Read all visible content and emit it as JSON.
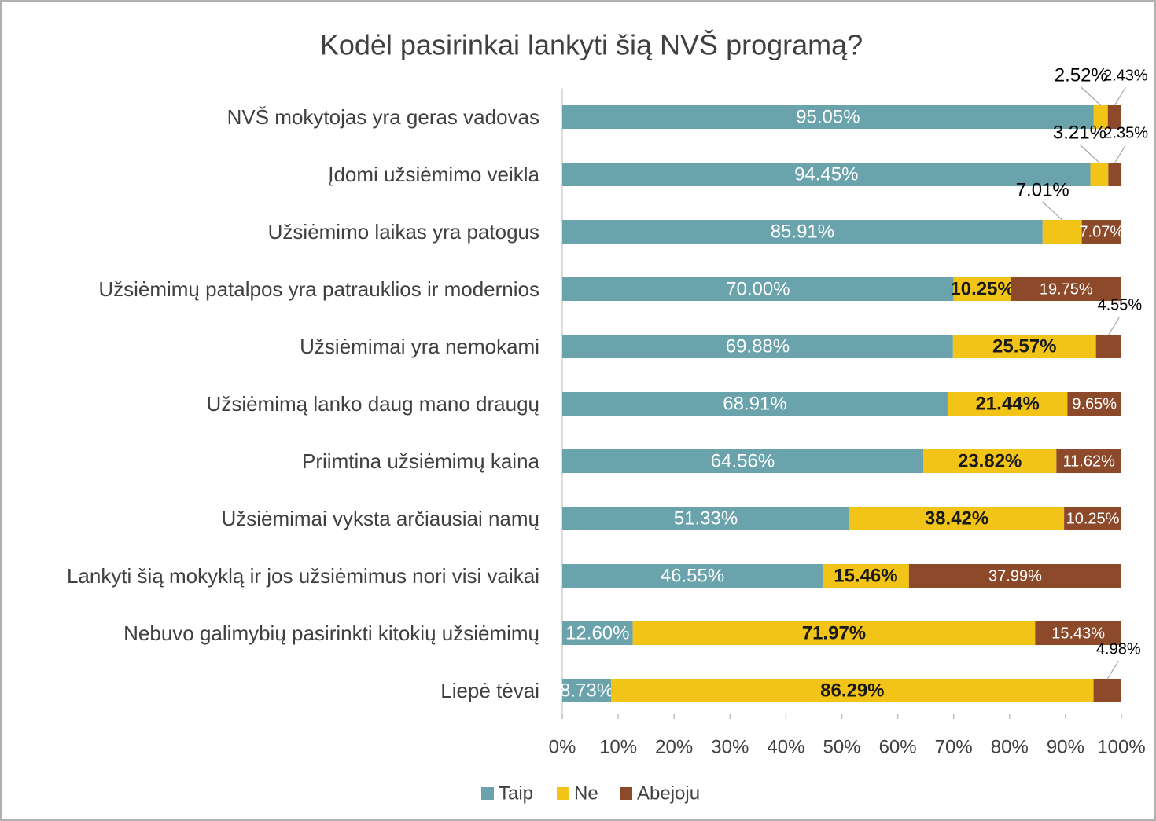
{
  "chart_data": {
    "type": "stacked_barh",
    "title": "Kodėl pasirinkai lankyti šią NVŠ programą?",
    "categories": [
      "NVŠ mokytojas yra geras vadovas",
      "Įdomi užsiėmimo veikla",
      "Užsiėmimo laikas yra patogus",
      "Užsiėmimų patalpos yra patrauklios ir modernios",
      "Užsiėmimai yra nemokami",
      "Užsiėmimą lanko daug mano draugų",
      "Priimtina užsiėmimų kaina",
      "Užsiėmimai vyksta arčiausiai namų",
      "Lankyti šią  mokyklą ir jos užsiėmimus nori visi vaikai",
      "Nebuvo galimybių pasirinkti kitokių užsiėmimų",
      "Liepė tėvai"
    ],
    "series": [
      {
        "name": "Taip",
        "color": "#6aa3ab",
        "values": [
          95.05,
          94.45,
          85.91,
          70.0,
          69.88,
          68.91,
          64.56,
          51.33,
          46.55,
          12.6,
          8.73
        ],
        "value_labels": [
          "95.05%",
          "94.45%",
          "85.91%",
          "70.00%",
          "69.88%",
          "68.91%",
          "64.56%",
          "51.33%",
          "46.55%",
          "12.60%",
          "8.73%"
        ]
      },
      {
        "name": "Ne",
        "color": "#f2c418",
        "values": [
          2.52,
          3.21,
          7.01,
          10.25,
          25.57,
          21.44,
          23.82,
          38.42,
          15.46,
          71.97,
          86.29
        ],
        "value_labels": [
          "2.52%",
          "3.21%",
          "7.01%",
          "10.25%",
          "25.57%",
          "21.44%",
          "23.82%",
          "38.42%",
          "15.46%",
          "71.97%",
          "86.29%"
        ]
      },
      {
        "name": "Abejoju",
        "color": "#8c4a2b",
        "values": [
          2.43,
          2.35,
          7.07,
          19.75,
          4.55,
          9.65,
          11.62,
          10.25,
          37.99,
          15.43,
          4.98
        ],
        "value_labels": [
          "2.43%",
          "2.35%",
          "7.07%",
          "19.75%",
          "4.55%",
          "9.65%",
          "11.62%",
          "10.25%",
          "37.99%",
          "15.43%",
          "4.98%"
        ]
      }
    ],
    "xlim": [
      0,
      100
    ],
    "xticks": [
      {
        "value": 0,
        "label": "0%"
      },
      {
        "value": 10,
        "label": "10%"
      },
      {
        "value": 20,
        "label": "20%"
      },
      {
        "value": 30,
        "label": "30%"
      },
      {
        "value": 40,
        "label": "40%"
      },
      {
        "value": 50,
        "label": "50%"
      },
      {
        "value": 60,
        "label": "60%"
      },
      {
        "value": 70,
        "label": "70%"
      },
      {
        "value": 80,
        "label": "80%"
      },
      {
        "value": 90,
        "label": "90%"
      },
      {
        "value": 100,
        "label": "100%"
      }
    ],
    "grid": false,
    "legend": "bottom"
  }
}
